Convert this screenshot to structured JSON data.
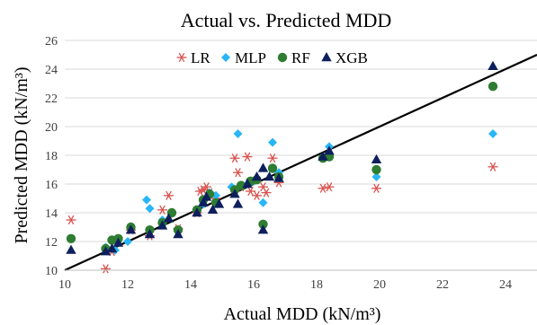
{
  "chart_data": {
    "type": "scatter",
    "title": "Actual vs. Predicted MDD",
    "xlabel": "Actual MDD (kN/m³)",
    "ylabel": "Predicted MDD (kN/m³)",
    "xlim": [
      10,
      25
    ],
    "ylim": [
      10,
      26
    ],
    "x_ticks": [
      "10",
      "12",
      "14",
      "16",
      "18",
      "20",
      "22",
      "24"
    ],
    "y_ticks": [
      "10",
      "12",
      "14",
      "16",
      "18",
      "20",
      "22",
      "24",
      "26"
    ],
    "grid": "horizontal",
    "legend_position": "top",
    "reference_line": {
      "from": [
        10,
        10
      ],
      "to": [
        25,
        25
      ],
      "color": "#000000"
    },
    "series": [
      {
        "name": "LR",
        "marker": "asterisk",
        "color": "#d9534f",
        "points": [
          [
            10.2,
            13.5
          ],
          [
            11.3,
            10.1
          ],
          [
            11.5,
            11.3
          ],
          [
            12.1,
            12.8
          ],
          [
            12.7,
            12.4
          ],
          [
            13.1,
            14.2
          ],
          [
            13.3,
            15.2
          ],
          [
            13.6,
            12.9
          ],
          [
            14.2,
            14.0
          ],
          [
            14.3,
            15.5
          ],
          [
            14.4,
            15.6
          ],
          [
            14.5,
            15.8
          ],
          [
            14.6,
            15.4
          ],
          [
            14.8,
            15.0
          ],
          [
            15.4,
            17.8
          ],
          [
            15.5,
            16.8
          ],
          [
            15.6,
            15.8
          ],
          [
            15.8,
            17.9
          ],
          [
            15.9,
            15.5
          ],
          [
            16.1,
            15.2
          ],
          [
            16.3,
            15.8
          ],
          [
            16.4,
            15.4
          ],
          [
            16.6,
            17.8
          ],
          [
            16.8,
            16.1
          ],
          [
            18.2,
            15.7
          ],
          [
            18.4,
            15.8
          ],
          [
            19.9,
            15.7
          ],
          [
            23.6,
            17.2
          ]
        ]
      },
      {
        "name": "MLP",
        "marker": "diamond",
        "color": "#29b6f6",
        "points": [
          [
            11.3,
            11.6
          ],
          [
            11.6,
            11.4
          ],
          [
            12.0,
            12.0
          ],
          [
            12.6,
            14.9
          ],
          [
            12.7,
            14.3
          ],
          [
            13.1,
            13.5
          ],
          [
            13.6,
            12.7
          ],
          [
            14.2,
            14.1
          ],
          [
            14.4,
            14.6
          ],
          [
            14.6,
            15.4
          ],
          [
            14.8,
            15.2
          ],
          [
            15.3,
            15.8
          ],
          [
            15.5,
            19.5
          ],
          [
            15.8,
            16.0
          ],
          [
            16.0,
            16.2
          ],
          [
            16.3,
            14.7
          ],
          [
            16.6,
            18.9
          ],
          [
            16.8,
            16.8
          ],
          [
            18.2,
            17.9
          ],
          [
            18.4,
            18.6
          ],
          [
            19.9,
            16.5
          ],
          [
            23.6,
            19.5
          ]
        ]
      },
      {
        "name": "RF",
        "marker": "circle",
        "color": "#2e7d32",
        "points": [
          [
            10.2,
            12.2
          ],
          [
            11.3,
            11.5
          ],
          [
            11.5,
            12.1
          ],
          [
            11.7,
            12.2
          ],
          [
            12.1,
            13.0
          ],
          [
            12.7,
            12.8
          ],
          [
            13.1,
            13.3
          ],
          [
            13.4,
            14.0
          ],
          [
            13.6,
            12.8
          ],
          [
            14.2,
            14.2
          ],
          [
            14.4,
            14.9
          ],
          [
            14.6,
            15.3
          ],
          [
            14.8,
            14.7
          ],
          [
            15.4,
            15.6
          ],
          [
            15.6,
            15.9
          ],
          [
            15.9,
            16.2
          ],
          [
            16.1,
            16.3
          ],
          [
            16.3,
            13.2
          ],
          [
            16.6,
            17.1
          ],
          [
            16.8,
            16.5
          ],
          [
            18.2,
            17.8
          ],
          [
            18.4,
            17.9
          ],
          [
            19.9,
            17.0
          ],
          [
            23.6,
            22.8
          ]
        ]
      },
      {
        "name": "XGB",
        "marker": "triangle",
        "color": "#0d1f5c",
        "points": [
          [
            10.2,
            11.4
          ],
          [
            11.3,
            11.3
          ],
          [
            11.5,
            11.5
          ],
          [
            11.7,
            11.9
          ],
          [
            12.1,
            12.8
          ],
          [
            12.7,
            12.5
          ],
          [
            13.1,
            13.1
          ],
          [
            13.3,
            13.6
          ],
          [
            13.6,
            12.5
          ],
          [
            14.2,
            14.0
          ],
          [
            14.4,
            14.7
          ],
          [
            14.5,
            15.1
          ],
          [
            14.7,
            14.2
          ],
          [
            14.9,
            14.6
          ],
          [
            15.4,
            15.3
          ],
          [
            15.5,
            14.6
          ],
          [
            15.8,
            16.0
          ],
          [
            16.1,
            16.5
          ],
          [
            16.3,
            12.8
          ],
          [
            16.3,
            17.1
          ],
          [
            16.5,
            16.5
          ],
          [
            16.8,
            16.4
          ],
          [
            18.2,
            17.9
          ],
          [
            18.4,
            18.3
          ],
          [
            19.9,
            17.7
          ],
          [
            23.6,
            24.2
          ]
        ]
      }
    ]
  }
}
